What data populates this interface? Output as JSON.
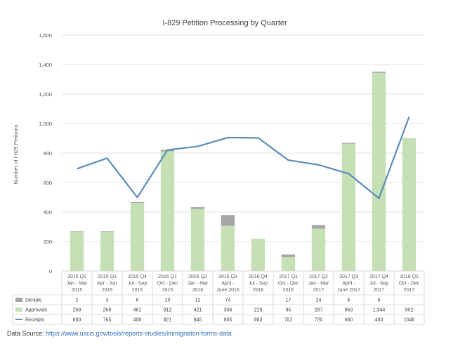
{
  "chart_data": {
    "type": "bar",
    "title": "I-829 Petition Processing by Quarter",
    "ylabel": "Number of I-829 Petitions",
    "xlabel": "",
    "ylim": [
      0,
      1600
    ],
    "yticks": [
      "0",
      "200",
      "400",
      "600",
      "800",
      "1,000",
      "1,200",
      "1,400",
      "1,600"
    ],
    "grid": true,
    "stacked": true,
    "categories": [
      [
        "2015 Q2",
        "Jan - Mar",
        "2015"
      ],
      [
        "2015 Q3",
        "Apr - Jun",
        "2015"
      ],
      [
        "2015 Q4",
        "Jul - Sep",
        "2015"
      ],
      [
        "2016 Q1",
        "Oct - Dec",
        "2015"
      ],
      [
        "2016 Q2",
        "Jan - Mar",
        "2016"
      ],
      [
        "2016 Q3",
        "April -",
        "June 2016"
      ],
      [
        "2016 Q4",
        "Jul - Sep",
        "2016"
      ],
      [
        "2017 Q1",
        "Oct - Dec",
        "2016"
      ],
      [
        "2017 Q2",
        "Jan - Mar",
        "2017"
      ],
      [
        "2017 Q3",
        "April -",
        "June 2017"
      ],
      [
        "2017 Q4",
        "Jul - Sep",
        "2017"
      ],
      [
        "2018 Q1",
        "Oct - Dec",
        "2017"
      ]
    ],
    "series": [
      {
        "name": "Denials",
        "kind": "bar",
        "color": "#a6a6a6",
        "values": [
          2,
          3,
          6,
          10,
          12,
          74,
          null,
          17,
          24,
          6,
          8,
          null
        ],
        "labels": [
          "2",
          "3",
          "6",
          "10",
          "12",
          "74",
          "",
          "17",
          "24",
          "6",
          "8",
          ""
        ]
      },
      {
        "name": "Approvals",
        "kind": "bar",
        "color": "#c5e0b4",
        "values": [
          269,
          268,
          461,
          812,
          421,
          306,
          219,
          95,
          287,
          863,
          1344,
          902
        ],
        "labels": [
          "269",
          "268",
          "461",
          "812",
          "421",
          "306",
          "219",
          "95",
          "287",
          "863",
          "1,344",
          "902"
        ]
      },
      {
        "name": "Receipts",
        "kind": "line",
        "color": "#5b8db8",
        "values": [
          693,
          765,
          499,
          821,
          845,
          905,
          903,
          752,
          720,
          660,
          493,
          1046
        ],
        "labels": [
          "693",
          "765",
          "499",
          "821",
          "845",
          "905",
          "903",
          "752",
          "720",
          "660",
          "493",
          "1046"
        ]
      }
    ]
  },
  "source": {
    "label": "Data Source:",
    "url": "https://www.uscis.gov/tools/reports-studies/immigration-forms-data"
  }
}
